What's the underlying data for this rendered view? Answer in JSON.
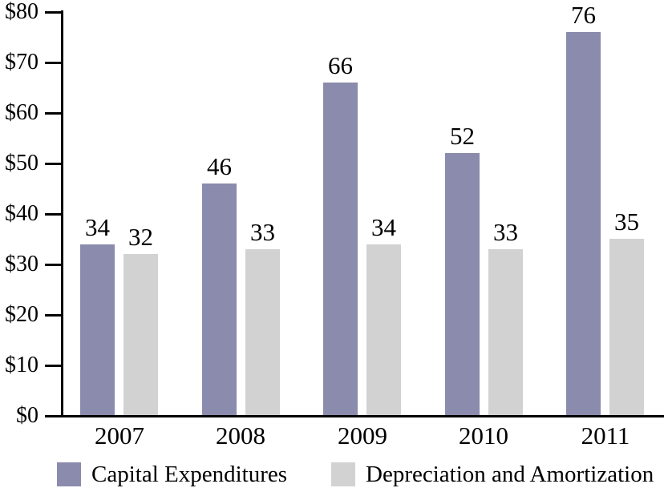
{
  "chart_data": {
    "type": "bar",
    "title": "",
    "xlabel": "",
    "ylabel": "",
    "categories": [
      "2007",
      "2008",
      "2009",
      "2010",
      "2011"
    ],
    "series": [
      {
        "name": "Capital Expenditures",
        "values": [
          34,
          46,
          66,
          52,
          76
        ],
        "color": "#8b8bad"
      },
      {
        "name": "Depreciation and Amortization",
        "values": [
          32,
          33,
          34,
          33,
          35
        ],
        "color": "#d2d2d2"
      }
    ],
    "bar_value_labels": [
      [
        "34",
        "46",
        "66",
        "52",
        "76"
      ],
      [
        "32",
        "33",
        "34",
        "33",
        "35"
      ]
    ],
    "y_axis": {
      "ylim": [
        0,
        80
      ],
      "tick_values": [
        0,
        10,
        20,
        30,
        40,
        50,
        60,
        70,
        80
      ],
      "tick_labels": [
        "$0",
        "$10",
        "$20",
        "$30",
        "$40",
        "$50",
        "$60",
        "$70",
        "$80"
      ]
    },
    "grid": false,
    "legend_position": "bottom",
    "axis_color": "#000000",
    "text_color": "#000000",
    "background_color": "#ffffff"
  }
}
